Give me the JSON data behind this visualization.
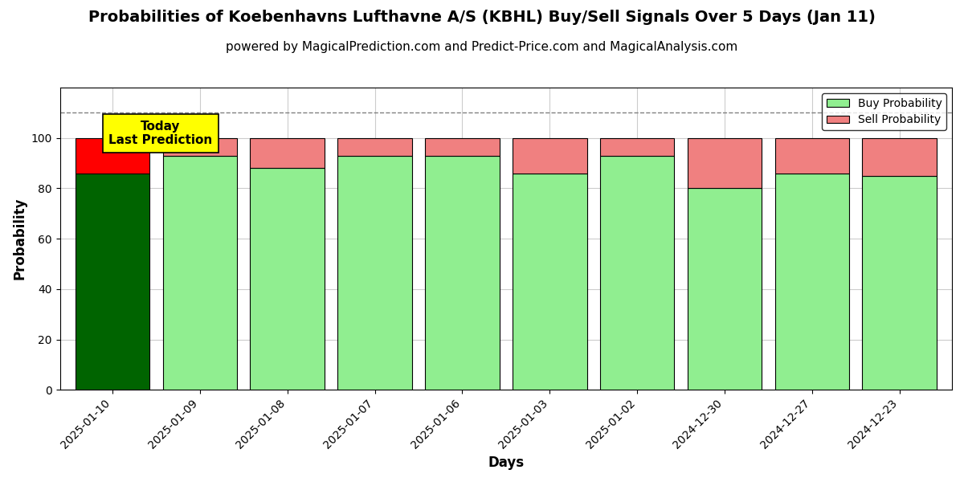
{
  "title": "Probabilities of Koebenhavns Lufthavne A/S (KBHL) Buy/Sell Signals Over 5 Days (Jan 11)",
  "subtitle": "powered by MagicalPrediction.com and Predict-Price.com and MagicalAnalysis.com",
  "xlabel": "Days",
  "ylabel": "Probability",
  "categories": [
    "2025-01-10",
    "2025-01-09",
    "2025-01-08",
    "2025-01-07",
    "2025-01-06",
    "2025-01-03",
    "2025-01-02",
    "2024-12-30",
    "2024-12-27",
    "2024-12-23"
  ],
  "buy_values": [
    86,
    93,
    88,
    93,
    93,
    86,
    93,
    80,
    86,
    85
  ],
  "sell_values": [
    14,
    7,
    12,
    7,
    7,
    14,
    7,
    20,
    14,
    15
  ],
  "today_bar_buy_color": "#006400",
  "today_bar_sell_color": "#FF0000",
  "regular_bar_buy_color": "#90EE90",
  "regular_bar_sell_color": "#F08080",
  "bar_edge_color": "#000000",
  "today_annotation_text": "Today\nLast Prediction",
  "today_annotation_bg": "#FFFF00",
  "legend_buy_label": "Buy Probability",
  "legend_sell_label": "Sell Probability",
  "ylim": [
    0,
    120
  ],
  "yticks": [
    0,
    20,
    40,
    60,
    80,
    100
  ],
  "dashed_line_y": 110,
  "background_color": "#FFFFFF",
  "grid_color": "#CCCCCC",
  "title_fontsize": 14,
  "subtitle_fontsize": 11,
  "axis_label_fontsize": 12,
  "tick_fontsize": 10
}
